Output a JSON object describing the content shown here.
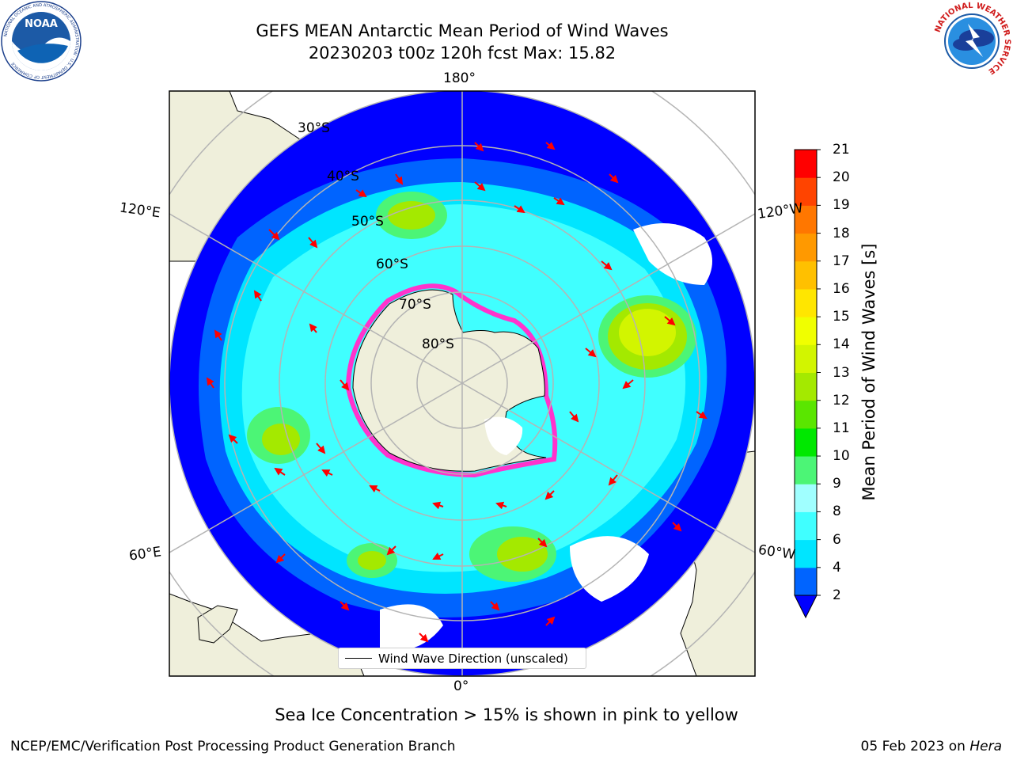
{
  "header": {
    "title_line1": "GEFS MEAN Antarctic Mean Period of Wind Waves",
    "title_line2": "20230203 t00z 120h fcst   Max: 15.82"
  },
  "logos": {
    "left": {
      "name": "noaa-logo",
      "text": "NOAA",
      "ring_text": "NATIONAL OCEANIC AND ATMOSPHERIC ADMINISTRATION · U.S. DEPARTMENT OF COMMERCE"
    },
    "right": {
      "name": "nws-logo",
      "ring_text": "NATIONAL WEATHER SERVICE"
    }
  },
  "map": {
    "graticule_labels": {
      "top": "180°",
      "bottom": "0°",
      "left_upper": "120°E",
      "right_upper": "120°W",
      "left_lower": "60°E",
      "right_lower": "60°W",
      "lat30": "30°S",
      "lat40": "40°S",
      "lat50": "50°S",
      "lat60": "60°S",
      "lat70": "70°S",
      "lat80": "80°S"
    },
    "legend_text": "Wind Wave Direction (unscaled)",
    "field_max": 15.82
  },
  "colorbar": {
    "label": "Mean Period of Wind Waves [s]",
    "ticks": [
      "2",
      "4",
      "6",
      "8",
      "9",
      "10",
      "11",
      "12",
      "13",
      "14",
      "15",
      "16",
      "17",
      "18",
      "19",
      "20",
      "21"
    ],
    "colors": [
      "#0064ff",
      "#00e5ff",
      "#40ffff",
      "#a0ffff",
      "#4cf576",
      "#00e800",
      "#5ae600",
      "#a4e900",
      "#d2f500",
      "#f0ff00",
      "#ffe600",
      "#ffc000",
      "#ff9900",
      "#ff7700",
      "#ff4400",
      "#ff0000"
    ],
    "extend_below_color": "#0000ff"
  },
  "footer": {
    "subtitle": "Sea Ice Concentration > 15% is shown in pink to yellow",
    "left": "NCEP/EMC/Verification Post Processing Product Generation Branch",
    "right_date": "05 Feb 2023 on ",
    "right_system": "Hera"
  }
}
